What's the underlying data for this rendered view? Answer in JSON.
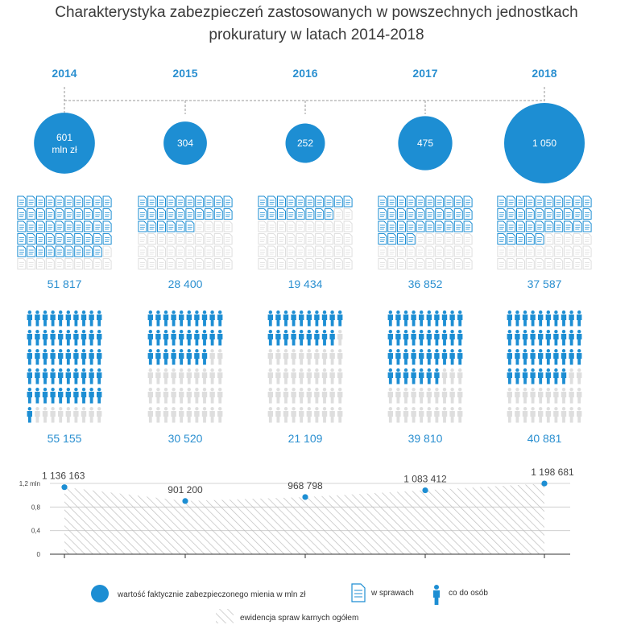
{
  "title": {
    "line1": "Charakterystyka zabezpieczeń zastosowanych w powszechnych jednostkach",
    "line2": "prokuratury w latach 2014-2018"
  },
  "colors": {
    "blue": "#1d8ed3",
    "light": "#dedede",
    "grid": "#c8c8c8",
    "hatch": "#bdbdbd"
  },
  "chart_data": {
    "type": "infographic",
    "years": [
      "2014",
      "2015",
      "2016",
      "2017",
      "2018"
    ],
    "property_value": {
      "values": [
        601,
        304,
        252,
        475,
        1050
      ],
      "labels": [
        "601 mln zł",
        "304",
        "252",
        "475",
        "1 050"
      ]
    },
    "in_cases": {
      "values": [
        51817,
        28400,
        19434,
        36852,
        37587
      ],
      "labels": [
        "51 817",
        "28 400",
        "19 434",
        "36 852",
        "37 587"
      ],
      "icon_fill": [
        49,
        26,
        18,
        34,
        35
      ],
      "icon_total": 60
    },
    "persons": {
      "values": [
        55155,
        30520,
        21109,
        39810,
        40881
      ],
      "labels": [
        "55 155",
        "30 520",
        "21 109",
        "39 810",
        "40 881"
      ],
      "icon_fill": [
        51,
        28,
        19,
        37,
        38
      ],
      "icon_total": 60
    },
    "total_cases": {
      "values": [
        1136163,
        901200,
        968798,
        1083412,
        1198681
      ],
      "labels": [
        "1 136 163",
        "901 200",
        "968 798",
        "1 083 412",
        "1 198 681"
      ],
      "y_ticks": [
        0,
        0.4,
        0.8,
        1.2
      ],
      "y_tick_labels": [
        "0",
        "0,4",
        "0,8",
        "1,2 mln"
      ],
      "ylim": [
        0,
        1200000
      ]
    }
  },
  "legend": {
    "property_value": "wartość faktycznie zabezpieczonego mienia w mln zł",
    "in_cases": "w sprawach",
    "persons": "co do osób",
    "total_cases": "ewidencja spraw karnych ogółem"
  }
}
